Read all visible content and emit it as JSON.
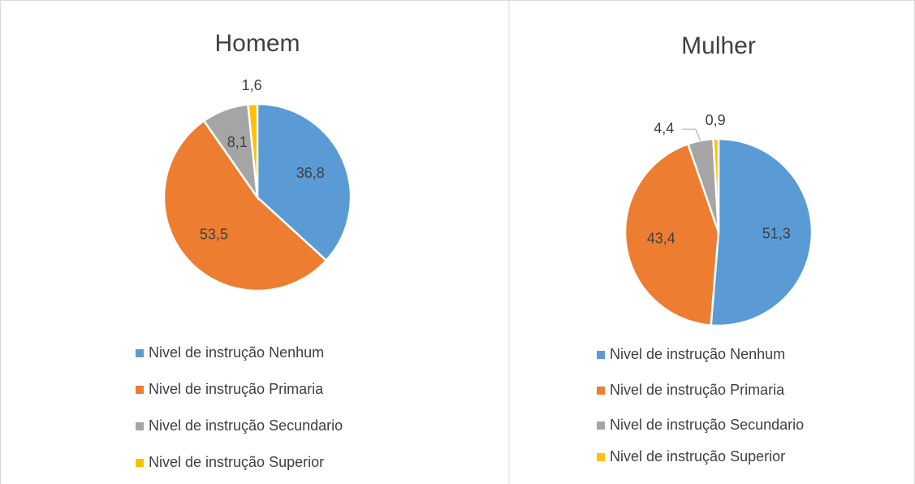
{
  "chart_data": [
    {
      "type": "pie",
      "title": "Homem",
      "categories": [
        "Nivel de instrução Nenhum",
        "Nivel de instrução Primaria",
        "Nivel de instrução Secundario",
        "Nivel de instrução Superior"
      ],
      "values": [
        36.8,
        53.5,
        8.1,
        1.6
      ],
      "value_labels": [
        "36,8",
        "53,5",
        "8,1",
        "1,6"
      ],
      "colors": [
        "#5b9bd5",
        "#ed7d31",
        "#a5a5a5",
        "#ffc000"
      ]
    },
    {
      "type": "pie",
      "title": "Mulher",
      "categories": [
        "Nivel de instrução Nenhum",
        "Nivel de instrução Primaria",
        "Nivel de instrução Secundario",
        "Nivel de instrução Superior"
      ],
      "values": [
        51.3,
        43.4,
        4.4,
        0.9
      ],
      "value_labels": [
        "51,3",
        "43,4",
        "4,4",
        "0,9"
      ],
      "colors": [
        "#5b9bd5",
        "#ed7d31",
        "#a5a5a5",
        "#ffc000"
      ]
    }
  ]
}
